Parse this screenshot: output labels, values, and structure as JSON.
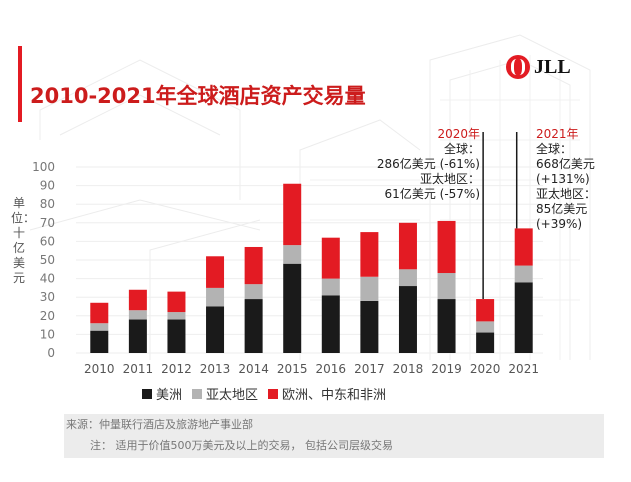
{
  "title": "2010-2021年全球酒店资产交易量",
  "logo": {
    "text": "JLL"
  },
  "colors": {
    "americas": "#1a1a1a",
    "apac": "#b3b3b3",
    "emea": "#e31b23",
    "accent": "#cc1c1c"
  },
  "annotations": {
    "y2020": {
      "year": "2020年",
      "l1": "全球：",
      "l2": "286亿美元 (-61%)",
      "l3": "亚太地区：",
      "l4": "61亿美元 (-57%)"
    },
    "y2021": {
      "year": "2021年",
      "l1": "全球：",
      "l2": "668亿美元",
      "l3": "(+131%)",
      "l4": "亚太地区：",
      "l5": "85亿美元",
      "l6": "(+39%)"
    }
  },
  "legend": [
    "美洲",
    "亚太地区",
    "欧洲、中东和非洲"
  ],
  "footer": {
    "source": "来源：仲量联行酒店及旅游地产事业部",
    "note": "注：  适用于价值500万美元及以上的交易， 包括公司层级交易"
  },
  "chart_data": {
    "type": "bar",
    "stacked": true,
    "categories": [
      "2010",
      "2011",
      "2012",
      "2013",
      "2014",
      "2015",
      "2016",
      "2017",
      "2018",
      "2019",
      "2020",
      "2021"
    ],
    "ylabel": "单位：十亿美元",
    "ylim": [
      0,
      100
    ],
    "yticks": [
      0,
      10,
      20,
      30,
      40,
      50,
      60,
      70,
      80,
      90,
      100
    ],
    "series": [
      {
        "name": "美洲",
        "values": [
          12,
          18,
          18,
          25,
          29,
          48,
          31,
          28,
          36,
          29,
          11,
          38
        ]
      },
      {
        "name": "亚太地区",
        "values": [
          4,
          5,
          4,
          10,
          8,
          10,
          9,
          13,
          9,
          14,
          6,
          9
        ]
      },
      {
        "name": "欧洲、中东和非洲",
        "values": [
          11,
          11,
          11,
          17,
          20,
          33,
          22,
          24,
          25,
          28,
          12,
          20
        ]
      }
    ]
  }
}
